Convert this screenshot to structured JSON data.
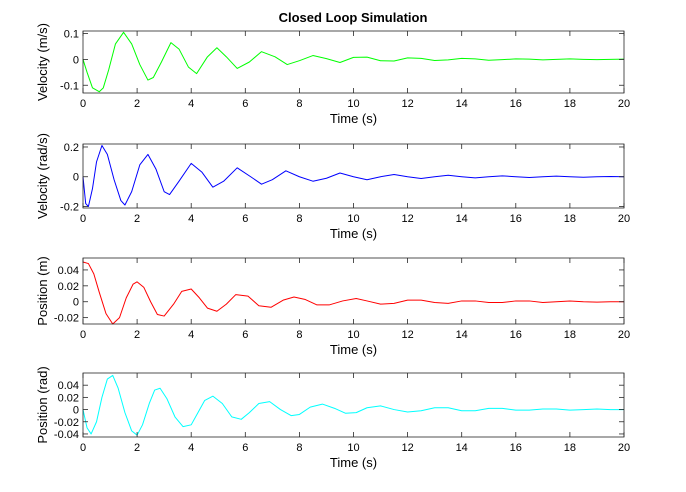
{
  "figure": {
    "title": "Closed Loop Simulation"
  },
  "chart_data": [
    {
      "type": "line",
      "title": "Closed Loop Simulation",
      "xlabel": "Time (s)",
      "ylabel": "Velocity (m/s)",
      "xlim": [
        0,
        20
      ],
      "ylim": [
        -0.13,
        0.11
      ],
      "xticks": [
        0,
        2,
        4,
        6,
        8,
        10,
        12,
        14,
        16,
        18,
        20
      ],
      "yticks": [
        -0.1,
        0,
        0.1
      ],
      "ytick_labels": [
        "-0.1",
        "0",
        "0.1"
      ],
      "grid": false,
      "series": [
        {
          "color": "#00ff00",
          "x": [
            0.0,
            0.15,
            0.35,
            0.6,
            0.75,
            0.95,
            1.2,
            1.5,
            1.8,
            2.1,
            2.4,
            2.6,
            2.9,
            3.25,
            3.55,
            3.9,
            4.2,
            4.6,
            4.95,
            5.3,
            5.7,
            6.15,
            6.6,
            7.1,
            7.55,
            8.0,
            8.5,
            9.0,
            9.5,
            10.0,
            10.5,
            11.0,
            11.5,
            12.0,
            12.5,
            13.0,
            13.5,
            14.0,
            14.5,
            15.0,
            15.5,
            16.0,
            16.5,
            17.0,
            17.5,
            18.0,
            18.5,
            19.0,
            19.5,
            20.0
          ],
          "y": [
            0.0,
            -0.05,
            -0.11,
            -0.125,
            -0.11,
            -0.04,
            0.06,
            0.105,
            0.06,
            -0.02,
            -0.08,
            -0.07,
            -0.01,
            0.065,
            0.04,
            -0.03,
            -0.055,
            0.01,
            0.045,
            0.01,
            -0.035,
            -0.01,
            0.03,
            0.01,
            -0.02,
            -0.005,
            0.015,
            0.003,
            -0.012,
            0.008,
            0.009,
            -0.005,
            -0.006,
            0.006,
            0.004,
            -0.004,
            -0.002,
            0.004,
            0.002,
            -0.003,
            -0.001,
            0.002,
            0.001,
            -0.002,
            0.0,
            0.002,
            0.0,
            -0.001,
            0.0,
            0.001
          ]
        }
      ]
    },
    {
      "type": "line",
      "xlabel": "Time (s)",
      "ylabel": "Velocity (rad/s)",
      "xlim": [
        0,
        20
      ],
      "ylim": [
        -0.21,
        0.22
      ],
      "xticks": [
        0,
        2,
        4,
        6,
        8,
        10,
        12,
        14,
        16,
        18,
        20
      ],
      "yticks": [
        -0.2,
        0,
        0.2
      ],
      "ytick_labels": [
        "-0.2",
        "0",
        "0.2"
      ],
      "grid": false,
      "series": [
        {
          "color": "#0000ff",
          "x": [
            0.0,
            0.1,
            0.2,
            0.35,
            0.5,
            0.7,
            0.9,
            1.15,
            1.4,
            1.55,
            1.8,
            2.1,
            2.4,
            2.7,
            3.0,
            3.2,
            3.55,
            4.0,
            4.4,
            4.8,
            5.2,
            5.7,
            6.2,
            6.6,
            7.0,
            7.5,
            8.0,
            8.5,
            9.0,
            9.5,
            10.0,
            10.5,
            11.0,
            11.5,
            12.0,
            12.5,
            13.0,
            13.5,
            14.0,
            14.5,
            15.0,
            15.5,
            16.0,
            16.5,
            17.0,
            17.5,
            18.0,
            18.5,
            19.0,
            19.5,
            20.0
          ],
          "y": [
            0.0,
            -0.18,
            -0.2,
            -0.08,
            0.1,
            0.21,
            0.15,
            -0.02,
            -0.16,
            -0.19,
            -0.1,
            0.08,
            0.15,
            0.05,
            -0.1,
            -0.12,
            -0.03,
            0.09,
            0.03,
            -0.07,
            -0.03,
            0.06,
            0.0,
            -0.05,
            -0.02,
            0.04,
            0.0,
            -0.03,
            -0.01,
            0.025,
            0.0,
            -0.02,
            0.0,
            0.015,
            0.0,
            -0.012,
            0.0,
            0.01,
            0.0,
            -0.008,
            0.0,
            0.006,
            0.0,
            -0.005,
            0.0,
            0.004,
            0.0,
            -0.003,
            0.0,
            0.002,
            0.0
          ]
        }
      ]
    },
    {
      "type": "line",
      "xlabel": "Time (s)",
      "ylabel": "Position (m)",
      "xlim": [
        0,
        20
      ],
      "ylim": [
        -0.028,
        0.055
      ],
      "xticks": [
        0,
        2,
        4,
        6,
        8,
        10,
        12,
        14,
        16,
        18,
        20
      ],
      "yticks": [
        -0.02,
        0,
        0.02,
        0.04
      ],
      "ytick_labels": [
        "-0.02",
        "0",
        "0.02",
        "0.04"
      ],
      "grid": false,
      "series": [
        {
          "color": "#ff0000",
          "x": [
            0.0,
            0.2,
            0.4,
            0.6,
            0.85,
            1.1,
            1.35,
            1.6,
            1.85,
            2.0,
            2.25,
            2.5,
            2.75,
            3.0,
            3.35,
            3.65,
            4.0,
            4.3,
            4.6,
            4.95,
            5.3,
            5.65,
            6.1,
            6.5,
            6.95,
            7.4,
            7.8,
            8.2,
            8.65,
            9.1,
            9.6,
            10.1,
            10.5,
            11.0,
            11.5,
            12.0,
            12.5,
            13.0,
            13.5,
            14.0,
            14.5,
            15.0,
            15.5,
            16.0,
            16.5,
            17.0,
            17.5,
            18.0,
            18.5,
            19.0,
            19.5,
            20.0
          ],
          "y": [
            0.05,
            0.048,
            0.035,
            0.012,
            -0.015,
            -0.028,
            -0.02,
            0.005,
            0.022,
            0.025,
            0.018,
            0.0,
            -0.016,
            -0.018,
            -0.003,
            0.013,
            0.016,
            0.005,
            -0.008,
            -0.012,
            -0.003,
            0.009,
            0.007,
            -0.005,
            -0.007,
            0.002,
            0.006,
            0.003,
            -0.004,
            -0.004,
            0.001,
            0.004,
            0.001,
            -0.003,
            -0.002,
            0.002,
            0.002,
            -0.001,
            -0.002,
            0.001,
            0.001,
            -0.001,
            -0.001,
            0.001,
            0.001,
            -0.001,
            0.0,
            0.001,
            0.0,
            -0.0005,
            0.0,
            0.0
          ]
        }
      ]
    },
    {
      "type": "line",
      "xlabel": "Time (s)",
      "ylabel": "Position (rad)",
      "xlim": [
        0,
        20
      ],
      "ylim": [
        -0.045,
        0.06
      ],
      "xticks": [
        0,
        2,
        4,
        6,
        8,
        10,
        12,
        14,
        16,
        18,
        20
      ],
      "yticks": [
        -0.04,
        -0.02,
        0,
        0.02,
        0.04
      ],
      "ytick_labels": [
        "-0.04",
        "-0.02",
        "0",
        "0.02",
        "0.04"
      ],
      "grid": false,
      "series": [
        {
          "color": "#00ffff",
          "x": [
            0.0,
            0.15,
            0.3,
            0.5,
            0.7,
            0.9,
            1.1,
            1.3,
            1.55,
            1.8,
            2.0,
            2.2,
            2.45,
            2.65,
            2.85,
            3.1,
            3.4,
            3.7,
            4.0,
            4.25,
            4.5,
            4.8,
            5.15,
            5.5,
            5.85,
            6.15,
            6.5,
            6.9,
            7.3,
            7.7,
            8.0,
            8.4,
            8.85,
            9.3,
            9.7,
            10.1,
            10.5,
            11.0,
            11.5,
            12.0,
            12.5,
            13.0,
            13.5,
            14.0,
            14.5,
            15.0,
            15.5,
            16.0,
            16.5,
            17.0,
            17.5,
            18.0,
            18.5,
            19.0,
            19.5,
            20.0
          ],
          "y": [
            0.0,
            -0.03,
            -0.04,
            -0.02,
            0.02,
            0.05,
            0.056,
            0.035,
            -0.005,
            -0.035,
            -0.042,
            -0.025,
            0.01,
            0.032,
            0.035,
            0.018,
            -0.012,
            -0.028,
            -0.025,
            -0.005,
            0.015,
            0.022,
            0.01,
            -0.012,
            -0.016,
            -0.005,
            0.01,
            0.013,
            0.0,
            -0.01,
            -0.008,
            0.004,
            0.009,
            0.002,
            -0.006,
            -0.005,
            0.003,
            0.006,
            0.0,
            -0.004,
            -0.002,
            0.003,
            0.003,
            -0.002,
            -0.002,
            0.002,
            0.002,
            -0.001,
            -0.001,
            0.001,
            0.001,
            -0.001,
            0.0,
            0.001,
            0.0,
            0.0
          ]
        }
      ]
    }
  ]
}
